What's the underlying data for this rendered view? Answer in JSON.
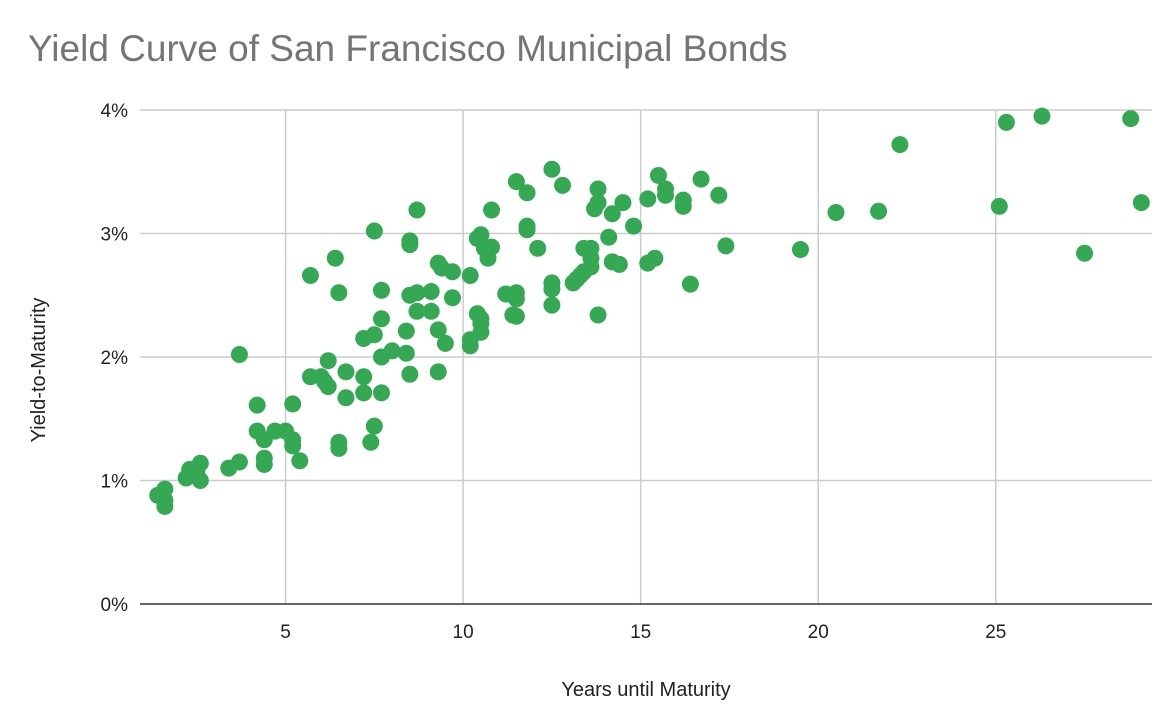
{
  "chart_data": {
    "type": "scatter",
    "title": "Yield Curve of San Francisco Municipal Bonds",
    "xlabel": "Years until Maturity",
    "ylabel": "Yield-to-Maturity",
    "xlim": [
      0.9,
      29.4
    ],
    "ylim": [
      0,
      0.04
    ],
    "x_ticks": [
      5,
      10,
      15,
      20,
      25
    ],
    "x_tick_labels": [
      "5",
      "10",
      "15",
      "20",
      "25"
    ],
    "y_ticks": [
      0,
      0.01,
      0.02,
      0.03,
      0.04
    ],
    "y_tick_labels": [
      "0%",
      "1%",
      "2%",
      "3%",
      "4%"
    ],
    "grid": true,
    "legend": "none",
    "marker_color": "#34a853",
    "points": [
      [
        1.4,
        0.0088
      ],
      [
        1.6,
        0.0093
      ],
      [
        1.6,
        0.0084
      ],
      [
        1.6,
        0.0079
      ],
      [
        2.2,
        0.0102
      ],
      [
        2.3,
        0.0109
      ],
      [
        2.5,
        0.0107
      ],
      [
        2.6,
        0.0114
      ],
      [
        2.6,
        0.01
      ],
      [
        3.4,
        0.011
      ],
      [
        3.7,
        0.0115
      ],
      [
        3.7,
        0.0202
      ],
      [
        4.2,
        0.0161
      ],
      [
        4.2,
        0.014
      ],
      [
        4.4,
        0.0133
      ],
      [
        4.4,
        0.0118
      ],
      [
        4.4,
        0.0113
      ],
      [
        4.7,
        0.014
      ],
      [
        5.0,
        0.014
      ],
      [
        5.2,
        0.0162
      ],
      [
        5.2,
        0.0133
      ],
      [
        5.2,
        0.0128
      ],
      [
        5.4,
        0.0116
      ],
      [
        5.7,
        0.0184
      ],
      [
        5.7,
        0.0266
      ],
      [
        6.0,
        0.0184
      ],
      [
        6.1,
        0.018
      ],
      [
        6.2,
        0.0176
      ],
      [
        6.2,
        0.0197
      ],
      [
        6.4,
        0.028
      ],
      [
        6.5,
        0.0131
      ],
      [
        6.5,
        0.0126
      ],
      [
        6.5,
        0.0252
      ],
      [
        6.7,
        0.0188
      ],
      [
        6.7,
        0.0167
      ],
      [
        7.2,
        0.0184
      ],
      [
        7.2,
        0.0171
      ],
      [
        7.2,
        0.0215
      ],
      [
        7.4,
        0.0131
      ],
      [
        7.5,
        0.0144
      ],
      [
        7.5,
        0.0218
      ],
      [
        7.5,
        0.0302
      ],
      [
        7.7,
        0.0171
      ],
      [
        7.7,
        0.02
      ],
      [
        7.7,
        0.0231
      ],
      [
        7.7,
        0.0254
      ],
      [
        8.0,
        0.0205
      ],
      [
        8.4,
        0.0203
      ],
      [
        8.4,
        0.0221
      ],
      [
        8.5,
        0.0186
      ],
      [
        8.5,
        0.025
      ],
      [
        8.5,
        0.0291
      ],
      [
        8.5,
        0.0294
      ],
      [
        8.7,
        0.0237
      ],
      [
        8.7,
        0.0252
      ],
      [
        8.7,
        0.0319
      ],
      [
        9.1,
        0.0253
      ],
      [
        9.1,
        0.0237
      ],
      [
        9.3,
        0.0222
      ],
      [
        9.3,
        0.0188
      ],
      [
        9.3,
        0.0276
      ],
      [
        9.4,
        0.0272
      ],
      [
        9.5,
        0.0211
      ],
      [
        9.7,
        0.0248
      ],
      [
        9.7,
        0.0269
      ],
      [
        10.2,
        0.0266
      ],
      [
        10.2,
        0.0214
      ],
      [
        10.2,
        0.0209
      ],
      [
        10.4,
        0.0296
      ],
      [
        10.4,
        0.0235
      ],
      [
        10.5,
        0.022
      ],
      [
        10.5,
        0.0227
      ],
      [
        10.5,
        0.0231
      ],
      [
        10.5,
        0.0299
      ],
      [
        10.6,
        0.0288
      ],
      [
        10.7,
        0.028
      ],
      [
        10.8,
        0.0289
      ],
      [
        10.8,
        0.0319
      ],
      [
        11.2,
        0.0251
      ],
      [
        11.4,
        0.0234
      ],
      [
        11.5,
        0.0252
      ],
      [
        11.5,
        0.0247
      ],
      [
        11.5,
        0.0233
      ],
      [
        11.5,
        0.0342
      ],
      [
        11.8,
        0.0306
      ],
      [
        11.8,
        0.0303
      ],
      [
        11.8,
        0.0333
      ],
      [
        12.1,
        0.0288
      ],
      [
        12.5,
        0.0242
      ],
      [
        12.5,
        0.0255
      ],
      [
        12.5,
        0.026
      ],
      [
        12.5,
        0.0352
      ],
      [
        12.8,
        0.0339
      ],
      [
        13.1,
        0.026
      ],
      [
        13.2,
        0.0263
      ],
      [
        13.3,
        0.0266
      ],
      [
        13.4,
        0.0288
      ],
      [
        13.4,
        0.0269
      ],
      [
        13.6,
        0.0273
      ],
      [
        13.6,
        0.028
      ],
      [
        13.6,
        0.0288
      ],
      [
        13.7,
        0.032
      ],
      [
        13.8,
        0.0325
      ],
      [
        13.8,
        0.0336
      ],
      [
        13.8,
        0.0234
      ],
      [
        14.1,
        0.0297
      ],
      [
        14.2,
        0.0277
      ],
      [
        14.2,
        0.0316
      ],
      [
        14.4,
        0.0275
      ],
      [
        14.5,
        0.0325
      ],
      [
        14.8,
        0.0306
      ],
      [
        15.2,
        0.0276
      ],
      [
        15.2,
        0.0328
      ],
      [
        15.4,
        0.028
      ],
      [
        15.5,
        0.0347
      ],
      [
        15.7,
        0.0331
      ],
      [
        15.7,
        0.0336
      ],
      [
        16.2,
        0.0322
      ],
      [
        16.2,
        0.0327
      ],
      [
        16.4,
        0.0259
      ],
      [
        16.7,
        0.0344
      ],
      [
        17.2,
        0.0331
      ],
      [
        17.4,
        0.029
      ],
      [
        19.5,
        0.0287
      ],
      [
        20.5,
        0.0317
      ],
      [
        21.7,
        0.0318
      ],
      [
        22.3,
        0.0372
      ],
      [
        25.1,
        0.0322
      ],
      [
        25.3,
        0.039
      ],
      [
        26.3,
        0.0395
      ],
      [
        27.5,
        0.0284
      ],
      [
        28.8,
        0.0393
      ],
      [
        29.1,
        0.0325
      ]
    ]
  }
}
